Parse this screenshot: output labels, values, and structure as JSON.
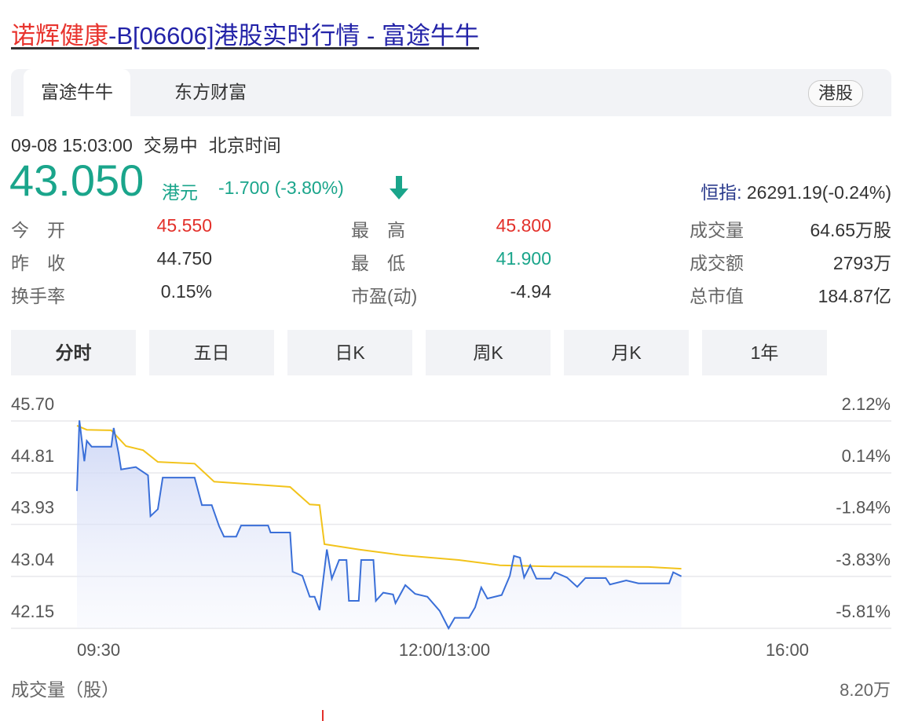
{
  "page_title": {
    "name_part": "诺辉健康",
    "rest_part": "-B[06606]港股实时行情 - 富途牛牛"
  },
  "source_tabs": [
    {
      "label": "富途牛牛",
      "active": true
    },
    {
      "label": "东方财富",
      "active": false
    }
  ],
  "market_pill": "港股",
  "status": {
    "datetime": "09-08 15:03:00",
    "state": "交易中",
    "timezone": "北京时间"
  },
  "quote": {
    "price": "43.050",
    "unit": "港元",
    "change": "-1.700 (-3.80%)",
    "direction_icon": "arrow-down-icon"
  },
  "index": {
    "label": "恒指:",
    "value": "26291.19(-0.24%)"
  },
  "stats": [
    [
      {
        "label": "今　开",
        "value": "45.550",
        "tone": "up"
      },
      {
        "label": "最　高",
        "value": "45.800",
        "tone": "up"
      },
      {
        "label": "成交量",
        "value": "64.65万股",
        "tone": ""
      }
    ],
    [
      {
        "label": "昨　收",
        "value": "44.750",
        "tone": ""
      },
      {
        "label": "最　低",
        "value": "41.900",
        "tone": "down"
      },
      {
        "label": "成交额",
        "value": "2793万",
        "tone": ""
      }
    ],
    [
      {
        "label": "换手率",
        "value": "0.15%",
        "tone": ""
      },
      {
        "label": "市盈(动)",
        "value": "-4.94",
        "tone": ""
      },
      {
        "label": "总市值",
        "value": "184.87亿",
        "tone": ""
      }
    ]
  ],
  "period_tabs": [
    {
      "label": "分时",
      "active": true
    },
    {
      "label": "五日",
      "active": false
    },
    {
      "label": "日K",
      "active": false
    },
    {
      "label": "周K",
      "active": false
    },
    {
      "label": "月K",
      "active": false
    },
    {
      "label": "1年",
      "active": false
    }
  ],
  "colors": {
    "up": "#e3302a",
    "down": "#1aa58b",
    "price_line": "#3a6fd8",
    "avg_line": "#f2c31b"
  },
  "chart_data": {
    "type": "line",
    "y_ticks": [
      "45.70",
      "44.81",
      "43.93",
      "43.04",
      "42.15"
    ],
    "y_tick_values": [
      45.7,
      44.81,
      43.93,
      43.04,
      42.15
    ],
    "pct_ticks": [
      "2.12%",
      "0.14%",
      "-1.84%",
      "-3.83%",
      "-5.81%"
    ],
    "x_ticks": [
      "09:30",
      "12:00/13:00",
      "16:00"
    ],
    "ylim": [
      42.15,
      45.7
    ],
    "sessions": [
      [
        "09:30",
        "12:00"
      ],
      [
        "13:00",
        "16:00"
      ]
    ],
    "grid": true,
    "series": [
      {
        "key": "price",
        "points": [
          [
            "09:30",
            44.5
          ],
          [
            "09:31",
            45.71
          ],
          [
            "09:33",
            45.01
          ],
          [
            "09:34",
            45.36
          ],
          [
            "09:36",
            45.26
          ],
          [
            "09:44",
            45.26
          ],
          [
            "09:45",
            45.58
          ],
          [
            "09:47",
            45.15
          ],
          [
            "09:48",
            44.87
          ],
          [
            "09:54",
            44.91
          ],
          [
            "09:59",
            44.77
          ],
          [
            "10:00",
            44.07
          ],
          [
            "10:03",
            44.19
          ],
          [
            "10:05",
            44.73
          ],
          [
            "10:18",
            44.73
          ],
          [
            "10:21",
            44.26
          ],
          [
            "10:25",
            44.26
          ],
          [
            "10:28",
            43.9
          ],
          [
            "10:30",
            43.72
          ],
          [
            "10:35",
            43.72
          ],
          [
            "10:37",
            43.91
          ],
          [
            "10:48",
            43.91
          ],
          [
            "10:49",
            43.79
          ],
          [
            "10:57",
            43.79
          ],
          [
            "10:58",
            43.12
          ],
          [
            "11:02",
            43.05
          ],
          [
            "11:05",
            42.69
          ],
          [
            "11:07",
            42.69
          ],
          [
            "11:09",
            42.46
          ],
          [
            "11:12",
            43.5
          ],
          [
            "11:14",
            43.0
          ],
          [
            "11:17",
            43.32
          ],
          [
            "11:20",
            43.32
          ],
          [
            "11:21",
            42.62
          ],
          [
            "11:25",
            42.62
          ],
          [
            "11:26",
            43.32
          ],
          [
            "11:31",
            43.32
          ],
          [
            "11:32",
            42.62
          ],
          [
            "11:35",
            42.76
          ],
          [
            "11:39",
            42.73
          ],
          [
            "11:40",
            42.58
          ],
          [
            "11:44",
            42.89
          ],
          [
            "11:48",
            42.74
          ],
          [
            "11:53",
            42.69
          ],
          [
            "11:58",
            42.45
          ],
          [
            "13:02",
            42.15
          ],
          [
            "13:05",
            42.33
          ],
          [
            "13:12",
            42.33
          ],
          [
            "13:15",
            42.51
          ],
          [
            "13:18",
            42.85
          ],
          [
            "13:21",
            42.66
          ],
          [
            "13:28",
            42.72
          ],
          [
            "13:32",
            43.05
          ],
          [
            "13:34",
            43.39
          ],
          [
            "13:37",
            43.36
          ],
          [
            "13:39",
            43.02
          ],
          [
            "13:42",
            43.23
          ],
          [
            "13:45",
            43.0
          ],
          [
            "13:52",
            43.0
          ],
          [
            "13:54",
            43.11
          ],
          [
            "14:00",
            43.02
          ],
          [
            "14:05",
            42.86
          ],
          [
            "14:09",
            43.01
          ],
          [
            "14:19",
            43.01
          ],
          [
            "14:21",
            42.9
          ],
          [
            "14:29",
            42.97
          ],
          [
            "14:35",
            42.92
          ],
          [
            "14:50",
            42.92
          ],
          [
            "14:52",
            43.11
          ],
          [
            "14:56",
            43.04
          ]
        ]
      },
      {
        "key": "average",
        "points": [
          [
            "09:30",
            45.62
          ],
          [
            "09:34",
            45.55
          ],
          [
            "09:44",
            45.54
          ],
          [
            "09:50",
            45.27
          ],
          [
            "09:57",
            45.2
          ],
          [
            "10:03",
            45.0
          ],
          [
            "10:18",
            44.97
          ],
          [
            "10:26",
            44.66
          ],
          [
            "10:44",
            44.61
          ],
          [
            "10:57",
            44.57
          ],
          [
            "11:05",
            44.27
          ],
          [
            "11:09",
            44.26
          ],
          [
            "11:11",
            43.59
          ],
          [
            "11:25",
            43.5
          ],
          [
            "11:43",
            43.4
          ],
          [
            "13:07",
            43.32
          ],
          [
            "13:27",
            43.23
          ],
          [
            "13:52",
            43.21
          ],
          [
            "14:40",
            43.2
          ],
          [
            "14:56",
            43.17
          ]
        ]
      }
    ],
    "volume": {
      "label": "成交量（股）",
      "max_label": "8.20万"
    }
  }
}
